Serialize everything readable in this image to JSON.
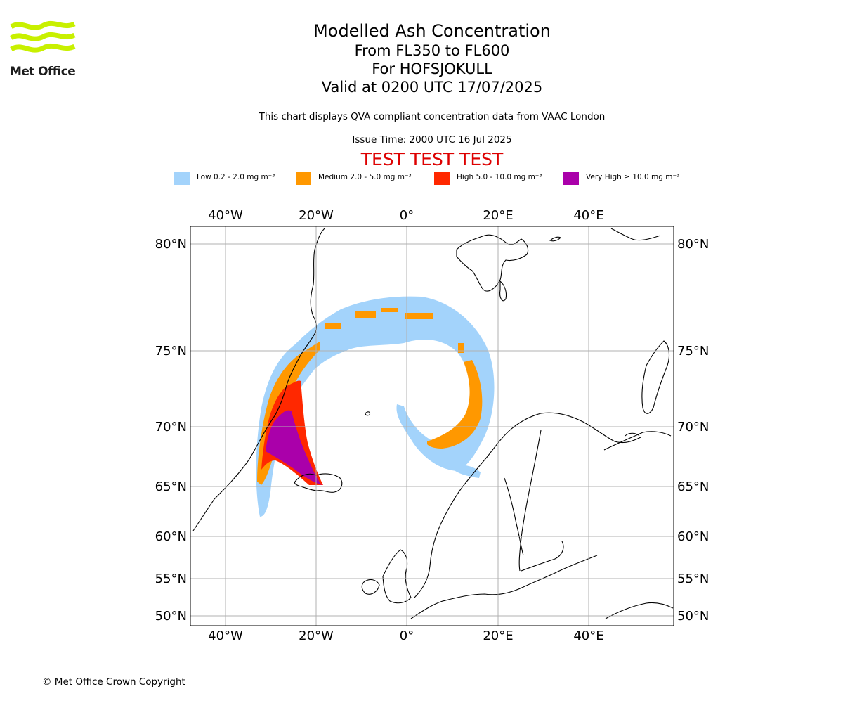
{
  "logo": {
    "text": "Met Office",
    "color": "#c8f000"
  },
  "title": {
    "line1": "Modelled Ash Concentration",
    "line2": "From FL350 to FL600",
    "line3": "For HOFSJOKULL",
    "line4": "Valid at 0200 UTC 17/07/2025"
  },
  "subtitle": "This chart displays QVA compliant concentration data from VAAC London",
  "issue_time": "Issue Time: 2000 UTC 16 Jul 2025",
  "test_banner": "TEST TEST TEST",
  "legend": [
    {
      "label": "Low 0.2 - 2.0 mg m⁻³",
      "color": "#a3d3fb"
    },
    {
      "label": "Medium 2.0 - 5.0 mg m⁻³",
      "color": "#ff9800"
    },
    {
      "label": "High 5.0 - 10.0 mg m⁻³",
      "color": "#ff2800"
    },
    {
      "label": "Very High  ≥  10.0 mg m⁻³",
      "color": "#aa00aa"
    }
  ],
  "map": {
    "lon_labels": [
      "40°W",
      "20°W",
      "0°",
      "20°E",
      "40°E"
    ],
    "lat_labels": [
      "80°N",
      "75°N",
      "70°N",
      "65°N",
      "60°N",
      "55°N",
      "50°N"
    ],
    "volcano": "HOFSJOKULL"
  },
  "copyright": "© Met Office Crown Copyright"
}
